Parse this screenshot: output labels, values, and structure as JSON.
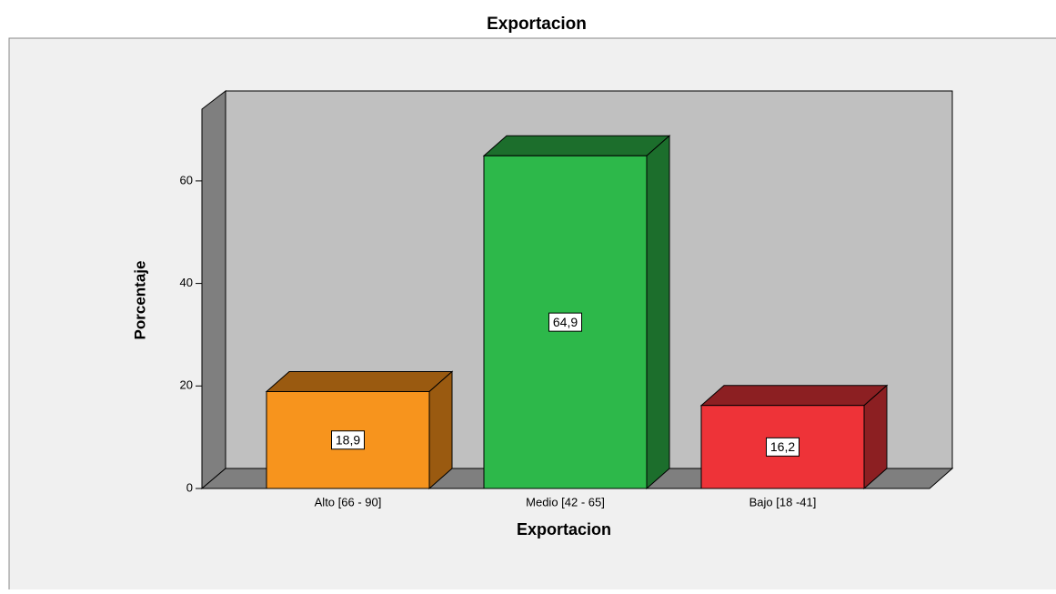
{
  "chart_data": {
    "type": "bar3d",
    "title": "Exportacion",
    "x_label": "Exportacion",
    "y_label": "Porcentaje",
    "categories": [
      "Alto [66 - 90]",
      "Medio [42 - 65]",
      "Bajo [18 -41]"
    ],
    "values": [
      18.9,
      64.9,
      16.2
    ],
    "value_labels": [
      "18,9",
      "64,9",
      "16,2"
    ],
    "colors": [
      "#f7941d",
      "#2db84a",
      "#ee3338"
    ],
    "side_colors": [
      "#9a5a10",
      "#1c6e2c",
      "#8c1f22"
    ],
    "ylim": [
      0,
      74
    ],
    "yticks": [
      0,
      20,
      40,
      60
    ],
    "grid": false
  }
}
